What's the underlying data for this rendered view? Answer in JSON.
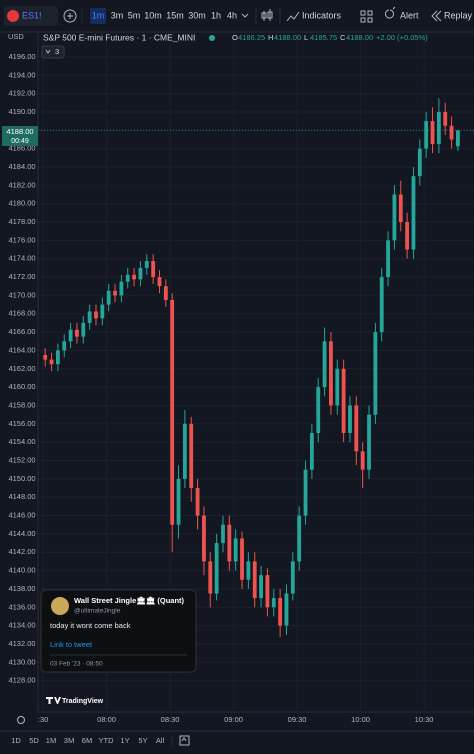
{
  "toolbar": {
    "symbol": "ES1!",
    "timeframes": [
      "1m",
      "3m",
      "5m",
      "10m",
      "15m",
      "30m",
      "1h",
      "4h"
    ],
    "indicators": "Indicators",
    "alert": "Alert",
    "replay": "Replay"
  },
  "legend": {
    "currency": "USD",
    "title": "S&P 500 E-mini Futures · 1 · CME_MINI",
    "ohlc": [
      [
        "O",
        "4186.25"
      ],
      [
        "H",
        "4188.00"
      ],
      [
        "L",
        "4185.75"
      ],
      [
        "C",
        "4188.00"
      ]
    ],
    "change": "+2.00 (+0.05%)",
    "badge": "3"
  },
  "price_tag": {
    "price": "4188.00",
    "countdown": "00:49"
  },
  "tweet": {
    "name": "Wall Street Jingle🏛🏛 (Quant)",
    "handle": "@ultimateJingle",
    "text": "today it wont come back",
    "link": "Link to tweet",
    "date": "03 Feb '23 · 08:50"
  },
  "logo": "TradingView",
  "ranges": [
    "1D",
    "5D",
    "1M",
    "3M",
    "6M",
    "YTD",
    "1Y",
    "5Y",
    "All"
  ],
  "chart_data": {
    "type": "candlestick",
    "grid": true,
    "up_color": "#26a69a",
    "down_color": "#ef5350",
    "last_price": 4188,
    "x": [
      451,
      454,
      457,
      460,
      463,
      466,
      469,
      472,
      475,
      478,
      481,
      484,
      487,
      490,
      493,
      496,
      499,
      502,
      505,
      508,
      511,
      514,
      517,
      520,
      523,
      526,
      529,
      532,
      535,
      538,
      541,
      544,
      547,
      550,
      553,
      556,
      559,
      562,
      565,
      568,
      571,
      574,
      577,
      580,
      583,
      586,
      589,
      592,
      595,
      598,
      601,
      604,
      607,
      610,
      613,
      616,
      619,
      622,
      625,
      628,
      631,
      634,
      637,
      640,
      643,
      646
    ],
    "open": [
      4163.5,
      4163.0,
      4162.5,
      4164.0,
      4165.0,
      4166.25,
      4165.5,
      4167.0,
      4168.25,
      4167.5,
      4169.0,
      4170.5,
      4170.0,
      4171.5,
      4172.25,
      4171.75,
      4173.0,
      4173.75,
      4172.0,
      4171.0,
      4169.5,
      4145.0,
      4150.0,
      4156.0,
      4149.0,
      4146.0,
      4141.0,
      4137.5,
      4143.0,
      4145.0,
      4141.0,
      4143.5,
      4139.0,
      4141.0,
      4137.0,
      4139.5,
      4136.0,
      4137.0,
      4134.0,
      4137.5,
      4141.0,
      4146.0,
      4151.0,
      4155.0,
      4160.0,
      4165.0,
      4158.0,
      4162.0,
      4155.0,
      4158.0,
      4153.0,
      4151.0,
      4157.0,
      4166.0,
      4172.0,
      4176.0,
      4181.0,
      4178.0,
      4175.0,
      4183.0,
      4186.0,
      4189.0,
      4186.5,
      4190.0,
      4188.5,
      4186.25
    ],
    "high": [
      4164.25,
      4163.75,
      4164.75,
      4165.75,
      4167.0,
      4167.0,
      4167.75,
      4169.0,
      4169.0,
      4169.75,
      4171.25,
      4171.25,
      4172.25,
      4173.0,
      4173.0,
      4173.75,
      4174.5,
      4174.5,
      4172.75,
      4171.75,
      4170.25,
      4151.5,
      4157.5,
      4156.75,
      4150.0,
      4147.0,
      4142.0,
      4144.0,
      4146.0,
      4146.0,
      4144.5,
      4144.25,
      4142.0,
      4142.0,
      4140.5,
      4140.25,
      4138.0,
      4138.0,
      4138.5,
      4142.0,
      4147.0,
      4152.0,
      4156.0,
      4161.0,
      4166.5,
      4166.0,
      4163.0,
      4163.0,
      4159.0,
      4159.0,
      4154.0,
      4158.0,
      4167.0,
      4173.0,
      4177.0,
      4182.0,
      4182.5,
      4179.0,
      4184.0,
      4187.0,
      4190.0,
      4190.5,
      4191.5,
      4191.0,
      4189.5,
      4188.0
    ],
    "low": [
      4162.25,
      4161.75,
      4161.75,
      4163.25,
      4164.25,
      4164.75,
      4164.75,
      4166.25,
      4166.75,
      4166.75,
      4168.25,
      4169.25,
      4169.25,
      4170.75,
      4171.0,
      4171.0,
      4172.25,
      4171.25,
      4170.25,
      4168.75,
      4142.0,
      4143.5,
      4149.0,
      4147.5,
      4144.5,
      4139.5,
      4136.0,
      4136.75,
      4142.0,
      4140.0,
      4140.0,
      4138.0,
      4138.0,
      4136.0,
      4136.0,
      4135.0,
      4135.0,
      4132.75,
      4133.0,
      4136.75,
      4140.0,
      4145.0,
      4150.0,
      4154.0,
      4159.0,
      4157.0,
      4157.0,
      4154.0,
      4154.0,
      4151.5,
      4149.0,
      4150.0,
      4156.0,
      4165.0,
      4171.0,
      4175.0,
      4177.0,
      4174.0,
      4174.0,
      4182.0,
      4185.0,
      4185.5,
      4185.5,
      4187.5,
      4186.0,
      4185.75
    ],
    "close": [
      4163.0,
      4162.5,
      4164.0,
      4165.0,
      4166.25,
      4165.5,
      4167.0,
      4168.25,
      4167.5,
      4169.0,
      4170.5,
      4170.0,
      4171.5,
      4172.25,
      4171.75,
      4173.0,
      4173.75,
      4172.0,
      4171.0,
      4169.5,
      4145.0,
      4150.0,
      4156.0,
      4149.0,
      4146.0,
      4141.0,
      4137.5,
      4143.0,
      4145.0,
      4141.0,
      4143.5,
      4139.0,
      4141.0,
      4137.0,
      4139.5,
      4136.0,
      4137.0,
      4134.0,
      4137.5,
      4141.0,
      4146.0,
      4151.0,
      4155.0,
      4160.0,
      4165.0,
      4158.0,
      4162.0,
      4155.0,
      4158.0,
      4153.0,
      4151.0,
      4157.0,
      4166.0,
      4172.0,
      4176.0,
      4181.0,
      4178.0,
      4175.0,
      4183.0,
      4186.0,
      4189.0,
      4186.5,
      4190.0,
      4188.5,
      4187.0,
      4188.0
    ],
    "xlim": [
      447.6,
      653.6
    ],
    "xticks": [
      {
        "value": 450,
        "label": ":30"
      },
      {
        "value": 480,
        "label": "08:00"
      },
      {
        "value": 510,
        "label": "08:30"
      },
      {
        "value": 540,
        "label": "09:00"
      },
      {
        "value": 570,
        "label": "09:30"
      },
      {
        "value": 600,
        "label": "10:00"
      },
      {
        "value": 630,
        "label": "10:30"
      }
    ],
    "ylim": [
      4124.8,
      4197.3
    ],
    "yticks": [
      {
        "value": 4128,
        "label": "4128.00"
      },
      {
        "value": 4130,
        "label": "4130.00"
      },
      {
        "value": 4132,
        "label": "4132.00"
      },
      {
        "value": 4134,
        "label": "4134.00"
      },
      {
        "value": 4136,
        "label": "4136.00"
      },
      {
        "value": 4138,
        "label": "4138.00"
      },
      {
        "value": 4140,
        "label": "4140.00"
      },
      {
        "value": 4142,
        "label": "4142.00"
      },
      {
        "value": 4144,
        "label": "4144.00"
      },
      {
        "value": 4146,
        "label": "4146.00"
      },
      {
        "value": 4148,
        "label": "4148.00"
      },
      {
        "value": 4150,
        "label": "4150.00"
      },
      {
        "value": 4152,
        "label": "4152.00"
      },
      {
        "value": 4154,
        "label": "4154.00"
      },
      {
        "value": 4156,
        "label": "4156.00"
      },
      {
        "value": 4158,
        "label": "4158.00"
      },
      {
        "value": 4160,
        "label": "4160.00"
      },
      {
        "value": 4162,
        "label": "4162.00"
      },
      {
        "value": 4164,
        "label": "4164.00"
      },
      {
        "value": 4166,
        "label": "4166.00"
      },
      {
        "value": 4168,
        "label": "4168.00"
      },
      {
        "value": 4170,
        "label": "4170.00"
      },
      {
        "value": 4172,
        "label": "4172.00"
      },
      {
        "value": 4174,
        "label": "4174.00"
      },
      {
        "value": 4176,
        "label": "4176.00"
      },
      {
        "value": 4178,
        "label": "4178.00"
      },
      {
        "value": 4180,
        "label": "4180.00"
      },
      {
        "value": 4182,
        "label": "4182.00"
      },
      {
        "value": 4184,
        "label": "4184.00"
      },
      {
        "value": 4186,
        "label": "4186.00"
      },
      {
        "value": 4188,
        "label": "4188.00"
      },
      {
        "value": 4190,
        "label": "4190.00"
      },
      {
        "value": 4192,
        "label": "4192.00"
      },
      {
        "value": 4194,
        "label": "4194.00"
      },
      {
        "value": 4196,
        "label": "4196.00"
      }
    ]
  }
}
